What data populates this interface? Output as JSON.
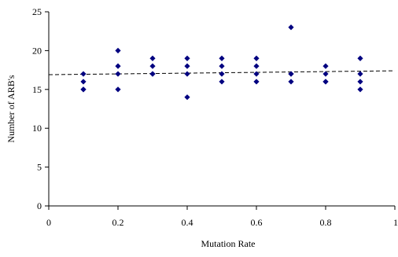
{
  "chart_data": {
    "type": "scatter",
    "xlabel": "Mutation Rate",
    "ylabel": "Number of ARB's",
    "xlim": [
      0,
      1
    ],
    "ylim": [
      0,
      25
    ],
    "x_ticks": [
      0,
      0.2,
      0.4,
      0.6,
      0.8,
      1
    ],
    "y_ticks": [
      0,
      5,
      10,
      15,
      20,
      25
    ],
    "x_tick_labels": [
      "0",
      "0.2",
      "0.4",
      "0.6",
      "0.8",
      "1"
    ],
    "y_tick_labels": [
      "0",
      "5",
      "10",
      "15",
      "20",
      "25"
    ],
    "grid": false,
    "series": [
      {
        "marker": "diamond",
        "color": "#000080",
        "points": [
          {
            "x": 0.1,
            "y": 17
          },
          {
            "x": 0.1,
            "y": 16
          },
          {
            "x": 0.1,
            "y": 15
          },
          {
            "x": 0.1,
            "y": 15
          },
          {
            "x": 0.2,
            "y": 20
          },
          {
            "x": 0.2,
            "y": 18
          },
          {
            "x": 0.2,
            "y": 17
          },
          {
            "x": 0.2,
            "y": 15
          },
          {
            "x": 0.3,
            "y": 19
          },
          {
            "x": 0.3,
            "y": 18
          },
          {
            "x": 0.3,
            "y": 17
          },
          {
            "x": 0.3,
            "y": 17
          },
          {
            "x": 0.4,
            "y": 19
          },
          {
            "x": 0.4,
            "y": 18
          },
          {
            "x": 0.4,
            "y": 17
          },
          {
            "x": 0.4,
            "y": 14
          },
          {
            "x": 0.5,
            "y": 19
          },
          {
            "x": 0.5,
            "y": 18
          },
          {
            "x": 0.5,
            "y": 17
          },
          {
            "x": 0.5,
            "y": 16
          },
          {
            "x": 0.6,
            "y": 19
          },
          {
            "x": 0.6,
            "y": 18
          },
          {
            "x": 0.6,
            "y": 17
          },
          {
            "x": 0.6,
            "y": 16
          },
          {
            "x": 0.7,
            "y": 23
          },
          {
            "x": 0.7,
            "y": 17
          },
          {
            "x": 0.7,
            "y": 17
          },
          {
            "x": 0.7,
            "y": 16
          },
          {
            "x": 0.8,
            "y": 18
          },
          {
            "x": 0.8,
            "y": 17
          },
          {
            "x": 0.8,
            "y": 16
          },
          {
            "x": 0.8,
            "y": 16
          },
          {
            "x": 0.9,
            "y": 19
          },
          {
            "x": 0.9,
            "y": 17
          },
          {
            "x": 0.9,
            "y": 16
          },
          {
            "x": 0.9,
            "y": 15
          }
        ]
      }
    ],
    "trendline": {
      "style": "dashed",
      "color": "#000000",
      "x": [
        0,
        1
      ],
      "y": [
        16.9,
        17.4
      ]
    }
  }
}
